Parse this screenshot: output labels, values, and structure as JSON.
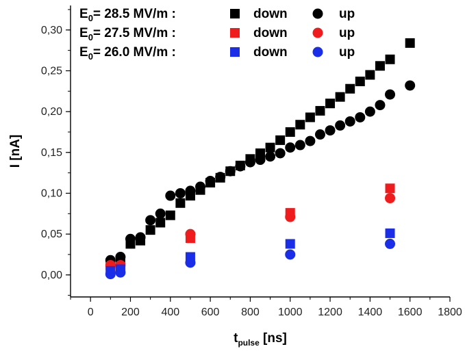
{
  "chart_data": {
    "type": "scatter",
    "title": "",
    "xlabel": {
      "main": "t",
      "sub": "pulse",
      "unit": "[ns]"
    },
    "ylabel": "I [nA]",
    "xlim": [
      -100,
      1800
    ],
    "ylim": [
      -0.027,
      0.33
    ],
    "x_ticks": [
      0,
      200,
      400,
      600,
      800,
      1000,
      1200,
      1400,
      1600,
      1800
    ],
    "x_tick_labels": [
      "0",
      "200",
      "400",
      "600",
      "800",
      "1000",
      "1200",
      "1400",
      "1600",
      "1800"
    ],
    "y_ticks": [
      0,
      0.05,
      0.1,
      0.15,
      0.2,
      0.25,
      0.3
    ],
    "y_tick_labels": [
      "0,00",
      "0,05",
      "0,10",
      "0,15",
      "0,20",
      "0,25",
      "0,30"
    ],
    "grid": false,
    "legend_position": "top-left",
    "legend_rows": [
      {
        "field_label": "E",
        "field_sub": "0",
        "field_value": "= 28.5 MV/m :",
        "down_label": "down",
        "up_label": "up",
        "color": "#000000"
      },
      {
        "field_label": "E",
        "field_sub": "0",
        "field_value": "= 27.5 MV/m :",
        "down_label": "down",
        "up_label": "up",
        "color": "#ee1c1c"
      },
      {
        "field_label": "E",
        "field_sub": "0",
        "field_value": "= 26.0 MV/m :",
        "down_label": "down",
        "up_label": "up",
        "color": "#1a2ee8"
      }
    ],
    "series": [
      {
        "name": "E0 = 28.5 MV/m down",
        "marker": "square",
        "color": "#000000",
        "points": [
          [
            100,
            0.012
          ],
          [
            150,
            0.014
          ],
          [
            200,
            0.038
          ],
          [
            250,
            0.042
          ],
          [
            300,
            0.055
          ],
          [
            350,
            0.064
          ],
          [
            400,
            0.073
          ],
          [
            450,
            0.088
          ],
          [
            500,
            0.097
          ],
          [
            550,
            0.104
          ],
          [
            600,
            0.113
          ],
          [
            650,
            0.119
          ],
          [
            700,
            0.127
          ],
          [
            750,
            0.134
          ],
          [
            800,
            0.142
          ],
          [
            850,
            0.149
          ],
          [
            900,
            0.156
          ],
          [
            950,
            0.165
          ],
          [
            1000,
            0.175
          ],
          [
            1050,
            0.184
          ],
          [
            1100,
            0.193
          ],
          [
            1150,
            0.201
          ],
          [
            1200,
            0.21
          ],
          [
            1250,
            0.218
          ],
          [
            1300,
            0.228
          ],
          [
            1350,
            0.237
          ],
          [
            1400,
            0.245
          ],
          [
            1450,
            0.256
          ],
          [
            1500,
            0.264
          ],
          [
            1600,
            0.284
          ]
        ]
      },
      {
        "name": "E0 = 28.5 MV/m up",
        "marker": "circle",
        "color": "#000000",
        "points": [
          [
            100,
            0.018
          ],
          [
            150,
            0.022
          ],
          [
            200,
            0.044
          ],
          [
            250,
            0.046
          ],
          [
            300,
            0.067
          ],
          [
            350,
            0.075
          ],
          [
            400,
            0.097
          ],
          [
            450,
            0.1
          ],
          [
            500,
            0.103
          ],
          [
            550,
            0.108
          ],
          [
            600,
            0.115
          ],
          [
            650,
            0.12
          ],
          [
            700,
            0.127
          ],
          [
            750,
            0.133
          ],
          [
            800,
            0.138
          ],
          [
            850,
            0.141
          ],
          [
            900,
            0.145
          ],
          [
            950,
            0.149
          ],
          [
            1000,
            0.156
          ],
          [
            1050,
            0.159
          ],
          [
            1100,
            0.164
          ],
          [
            1150,
            0.172
          ],
          [
            1200,
            0.177
          ],
          [
            1250,
            0.183
          ],
          [
            1300,
            0.188
          ],
          [
            1350,
            0.193
          ],
          [
            1400,
            0.2
          ],
          [
            1450,
            0.208
          ],
          [
            1500,
            0.221
          ],
          [
            1600,
            0.232
          ]
        ]
      },
      {
        "name": "E0 = 27.5 MV/m down",
        "marker": "square",
        "color": "#ee1c1c",
        "points": [
          [
            100,
            0.008
          ],
          [
            150,
            0.01
          ],
          [
            500,
            0.045
          ],
          [
            1000,
            0.076
          ],
          [
            1500,
            0.106
          ]
        ]
      },
      {
        "name": "E0 = 27.5 MV/m up",
        "marker": "circle",
        "color": "#ee1c1c",
        "points": [
          [
            100,
            0.012
          ],
          [
            150,
            0.012
          ],
          [
            500,
            0.05
          ],
          [
            1000,
            0.071
          ],
          [
            1500,
            0.094
          ]
        ]
      },
      {
        "name": "E0 = 26.0 MV/m down",
        "marker": "square",
        "color": "#1a2ee8",
        "points": [
          [
            100,
            0.005
          ],
          [
            150,
            0.007
          ],
          [
            500,
            0.022
          ],
          [
            1000,
            0.038
          ],
          [
            1500,
            0.051
          ]
        ]
      },
      {
        "name": "E0 = 26.0 MV/m up",
        "marker": "circle",
        "color": "#1a2ee8",
        "points": [
          [
            100,
            0.001
          ],
          [
            150,
            0.003
          ],
          [
            500,
            0.015
          ],
          [
            1000,
            0.025
          ],
          [
            1500,
            0.038
          ]
        ]
      }
    ]
  }
}
